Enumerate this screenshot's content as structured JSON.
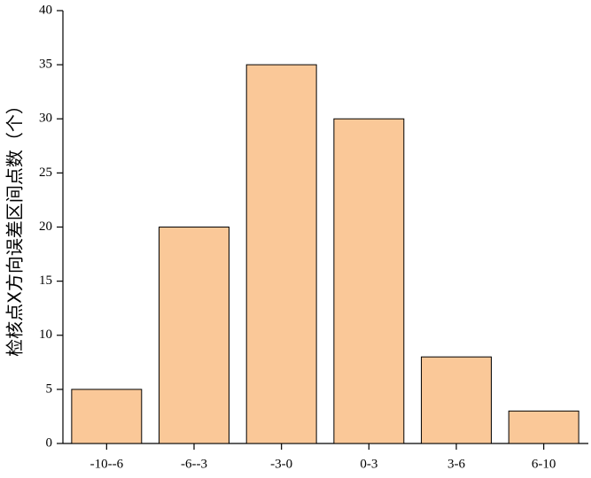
{
  "chart_data": {
    "type": "bar",
    "y_label": "检核点X方向误差区间点数（个）",
    "categories": [
      "-10--6",
      "-6--3",
      "-3-0",
      "0-3",
      "3-6",
      "6-10"
    ],
    "values": [
      5,
      20,
      35,
      30,
      8,
      3
    ],
    "color": "#fac898",
    "ylim": [
      0,
      40
    ],
    "yticks": [
      0,
      5,
      10,
      15,
      20,
      25,
      30,
      35,
      40
    ],
    "grid": false
  }
}
